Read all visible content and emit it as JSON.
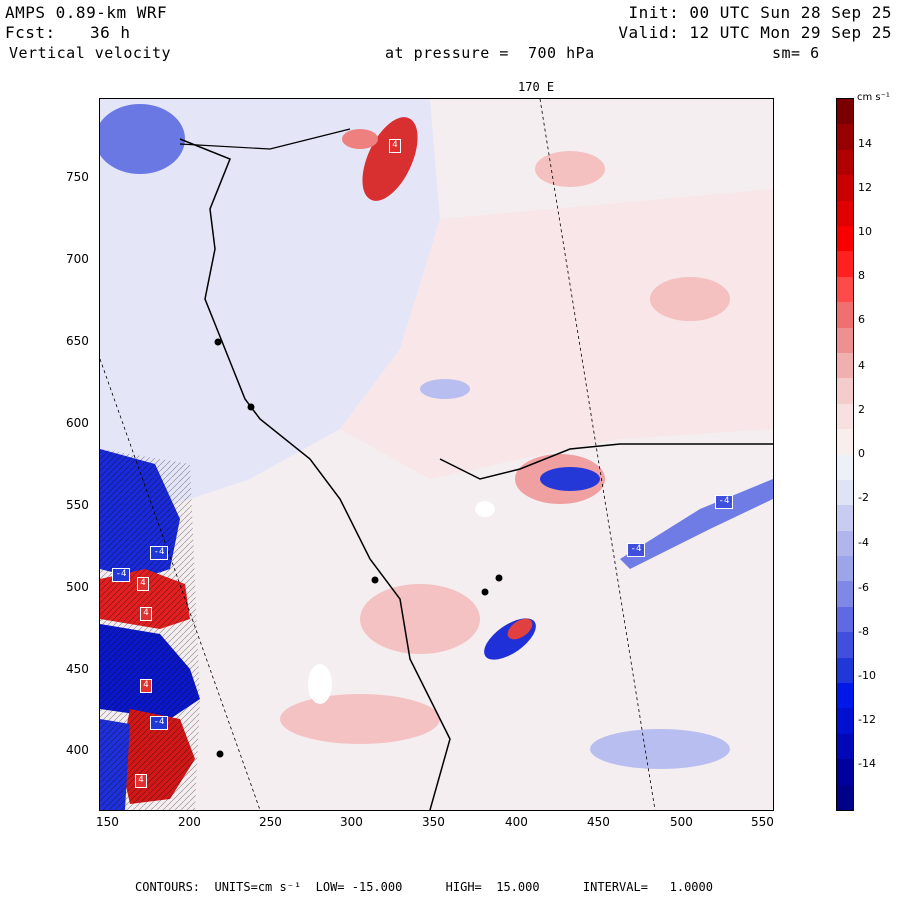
{
  "header": {
    "model": "AMPS 0.89-km WRF",
    "fcst_label": "Fcst:",
    "fcst_value": "36 h",
    "field": "Vertical velocity",
    "init": "Init: 00 UTC Sun 28 Sep 25",
    "valid": "Valid: 12 UTC Mon 29 Sep 25",
    "pressure": "at pressure =  700 hPa",
    "smoothing": "sm= 6"
  },
  "map": {
    "meridian_label": "170 E",
    "x_ticks": [
      "150",
      "200",
      "250",
      "300",
      "350",
      "400",
      "450",
      "500",
      "550"
    ],
    "y_ticks": [
      "750",
      "700",
      "650",
      "600",
      "550",
      "500",
      "450",
      "400"
    ],
    "box_labels": [
      "4",
      "-4",
      "4",
      "4",
      "-4",
      "-4",
      "4",
      "-4",
      "-4",
      "4"
    ]
  },
  "colorbar": {
    "unit": "cm s⁻¹",
    "labels": [
      "14",
      "12",
      "10",
      "8",
      "6",
      "4",
      "2",
      "0",
      "-2",
      "-4",
      "-6",
      "-8",
      "-10",
      "-12",
      "-14"
    ],
    "colors": [
      "#7a0000",
      "#960000",
      "#b00000",
      "#c80000",
      "#e00000",
      "#f80000",
      "#ff2020",
      "#ff4a4a",
      "#f07070",
      "#ef9090",
      "#f0b0b0",
      "#f5cccc",
      "#f8e0e0",
      "#f8eeee",
      "#eef0f8",
      "#e0e2f6",
      "#c8ccf0",
      "#b0b6ec",
      "#9ca4ea",
      "#7f88e6",
      "#5f6ae2",
      "#4050dc",
      "#2038d8",
      "#0018e8",
      "#0010d0",
      "#0008b8",
      "#00009c",
      "#000088"
    ]
  },
  "footer": {
    "contours": "CONTOURS:  UNITS=cm s⁻¹  LOW= -15.000      HIGH=  15.000      INTERVAL=   1.0000"
  }
}
